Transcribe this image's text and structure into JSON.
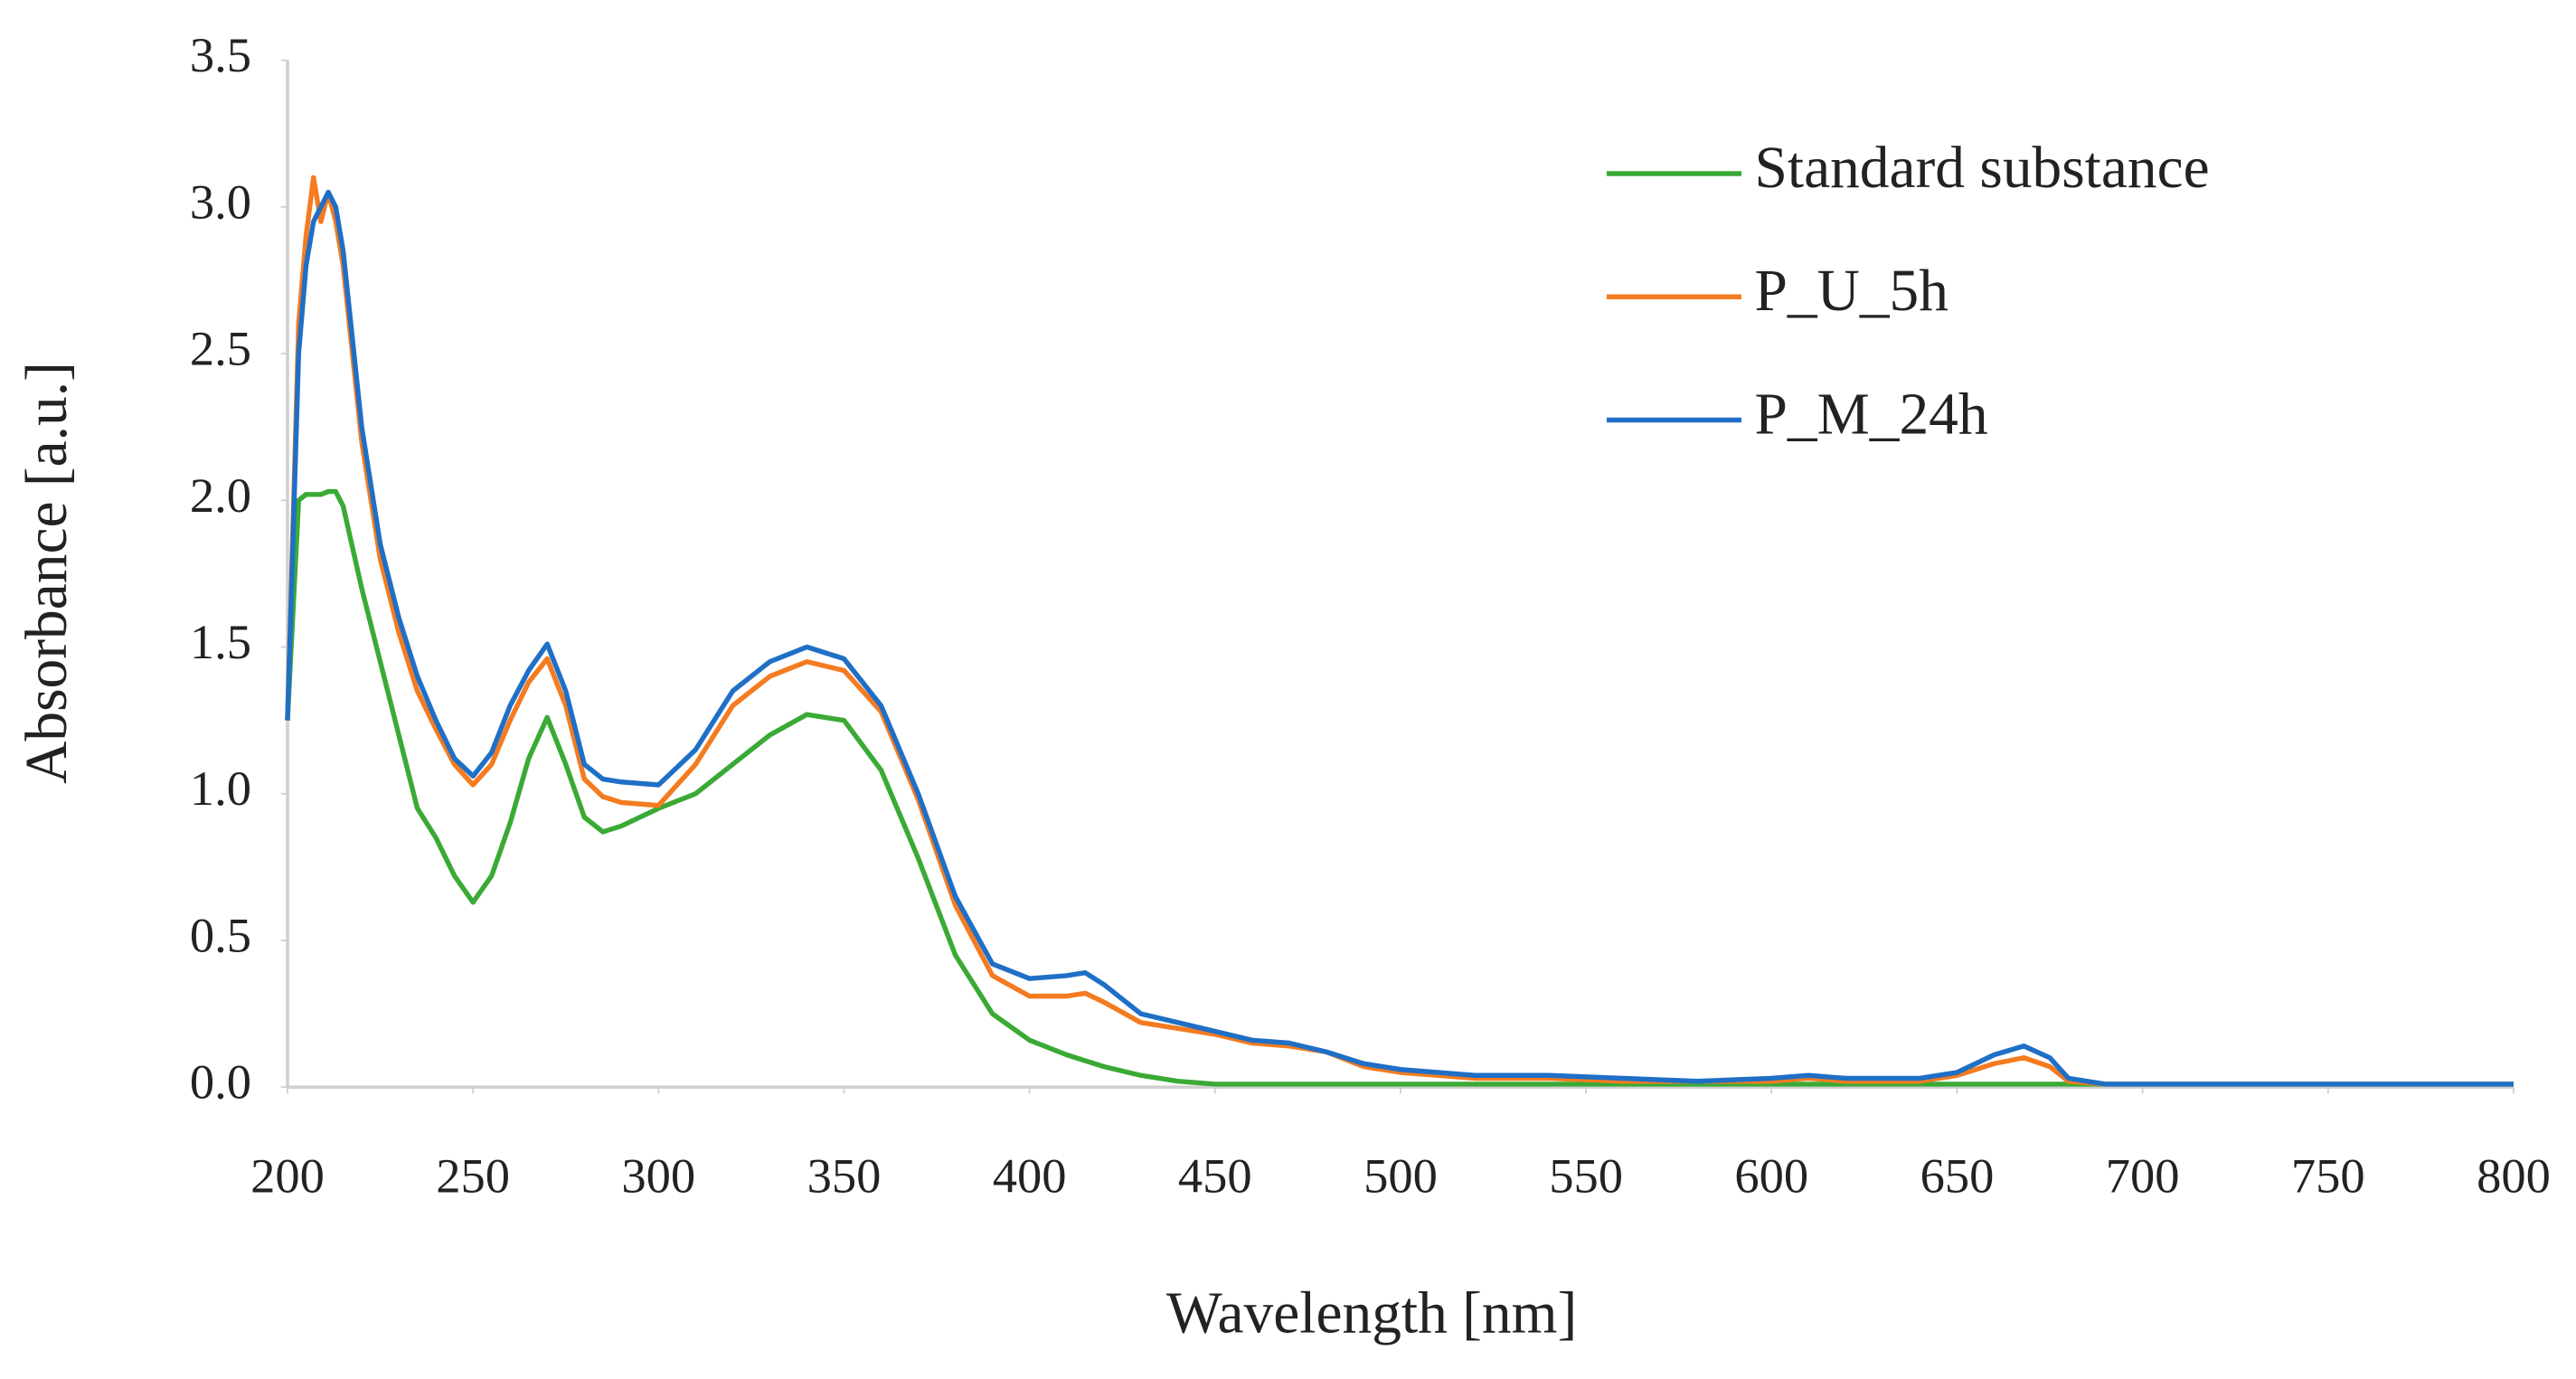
{
  "chart_data": {
    "type": "line",
    "xlabel": "Wavelength [nm]",
    "ylabel": "Absorbance [a.u.]",
    "x": [
      200,
      203,
      205,
      207,
      209,
      211,
      213,
      215,
      220,
      225,
      230,
      235,
      240,
      245,
      250,
      255,
      260,
      265,
      270,
      275,
      280,
      285,
      290,
      300,
      310,
      320,
      330,
      340,
      350,
      360,
      370,
      380,
      390,
      400,
      410,
      415,
      420,
      430,
      440,
      450,
      460,
      470,
      480,
      490,
      500,
      520,
      540,
      560,
      580,
      600,
      610,
      620,
      640,
      650,
      660,
      668,
      675,
      680,
      690,
      700,
      750,
      800
    ],
    "series": [
      {
        "name": "Standard substance",
        "color": "#3aaa35",
        "values": [
          1.25,
          2.0,
          2.02,
          2.02,
          2.02,
          2.03,
          2.03,
          1.98,
          1.7,
          1.45,
          1.2,
          0.95,
          0.85,
          0.72,
          0.63,
          0.72,
          0.9,
          1.12,
          1.26,
          1.1,
          0.92,
          0.87,
          0.89,
          0.95,
          1.0,
          1.1,
          1.2,
          1.27,
          1.25,
          1.08,
          0.78,
          0.45,
          0.25,
          0.16,
          0.11,
          0.09,
          0.07,
          0.04,
          0.02,
          0.01,
          0.01,
          0.01,
          0.01,
          0.01,
          0.01,
          0.01,
          0.01,
          0.01,
          0.01,
          0.01,
          0.01,
          0.01,
          0.01,
          0.01,
          0.01,
          0.01,
          0.01,
          0.01,
          0.01,
          0.01,
          0.01,
          0.01
        ]
      },
      {
        "name": "P_U_5h",
        "color": "#f47b20",
        "values": [
          1.25,
          2.6,
          2.9,
          3.1,
          2.95,
          3.05,
          2.95,
          2.8,
          2.2,
          1.8,
          1.55,
          1.35,
          1.22,
          1.1,
          1.03,
          1.1,
          1.25,
          1.38,
          1.46,
          1.3,
          1.05,
          0.99,
          0.97,
          0.96,
          1.1,
          1.3,
          1.4,
          1.45,
          1.42,
          1.28,
          0.98,
          0.62,
          0.38,
          0.31,
          0.31,
          0.32,
          0.29,
          0.22,
          0.2,
          0.18,
          0.15,
          0.14,
          0.12,
          0.07,
          0.05,
          0.03,
          0.03,
          0.02,
          0.02,
          0.02,
          0.03,
          0.02,
          0.02,
          0.04,
          0.08,
          0.1,
          0.07,
          0.02,
          0.01,
          0.01,
          0.01,
          0.01
        ]
      },
      {
        "name": "P_M_24h",
        "color": "#1f6fc6",
        "values": [
          1.25,
          2.5,
          2.8,
          2.95,
          3.0,
          3.05,
          3.0,
          2.85,
          2.25,
          1.85,
          1.6,
          1.4,
          1.25,
          1.12,
          1.06,
          1.14,
          1.3,
          1.42,
          1.51,
          1.35,
          1.1,
          1.05,
          1.04,
          1.03,
          1.15,
          1.35,
          1.45,
          1.5,
          1.46,
          1.3,
          1.0,
          0.65,
          0.42,
          0.37,
          0.38,
          0.39,
          0.35,
          0.25,
          0.22,
          0.19,
          0.16,
          0.15,
          0.12,
          0.08,
          0.06,
          0.04,
          0.04,
          0.03,
          0.02,
          0.03,
          0.04,
          0.03,
          0.03,
          0.05,
          0.11,
          0.14,
          0.1,
          0.03,
          0.01,
          0.01,
          0.01,
          0.01
        ]
      }
    ],
    "xlim": [
      200,
      800
    ],
    "xticks": [
      200,
      250,
      300,
      350,
      400,
      450,
      500,
      550,
      600,
      650,
      700,
      750,
      800
    ],
    "ylim": [
      0,
      3.5
    ],
    "yticks": [
      {
        "value": 0,
        "label": "0.0"
      },
      0.5,
      {
        "value": 1,
        "label": "1.0"
      },
      1.5,
      {
        "value": 2,
        "label": "2.0"
      },
      2.5,
      {
        "value": 3,
        "label": "3.0"
      },
      3.5
    ],
    "grid": false,
    "legend": "upper right"
  }
}
